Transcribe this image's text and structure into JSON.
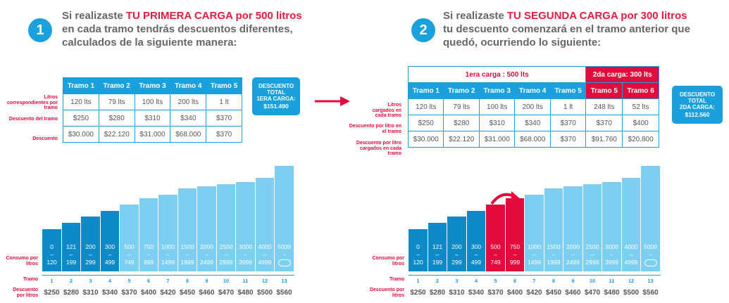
{
  "colors": {
    "blue": "#1aa0dd",
    "light_blue": "#7ccff0",
    "red": "#e30a3c",
    "dark_blue": "#0e8ac8"
  },
  "step1": {
    "number": "1",
    "line1_pre": "Si realizaste ",
    "line1_red": "TU PRIMERA CARGA",
    "line1_red2": " por 500 litros",
    "line2": "en cada tramo tendrás descuentos diferentes,",
    "line3": "calculados de la siguiente manera:",
    "table": {
      "headers": [
        "Tramo 1",
        "Tramo 2",
        "Tramo 3",
        "Tramo 4",
        "Tramo 5"
      ],
      "row_labels": [
        "Litros correspondientes por tramo",
        "Descuento del tramo",
        "Descuento"
      ],
      "rows": [
        [
          "120 lts",
          "79 lts",
          "100 lts",
          "200 lts",
          "1 lt"
        ],
        [
          "$250",
          "$280",
          "$310",
          "$340",
          "$370"
        ],
        [
          "$30.000",
          "$22.120",
          "$31.000",
          "$68.000",
          "$370"
        ]
      ]
    },
    "total_box": {
      "line1": "DESCUENTO",
      "line2": "TOTAL",
      "line3": "1ERA CARGA:",
      "amount": "$151.490"
    }
  },
  "step2": {
    "number": "2",
    "line1_pre": "Si realizaste ",
    "line1_red": "TU SEGUNDA CARGA",
    "line1_red2": " por 300 litros",
    "line2": "tu descuento comenzará en el tramo anterior que",
    "line3": "quedó, ocurriendo lo siguiente:",
    "table": {
      "group1": "1era carga : 500 lts",
      "group2": "2da carga: 300 lts",
      "headers": [
        "Tramo 1",
        "Tramo 2",
        "Tramo 3",
        "Tramo 4",
        "Tramo 5",
        "Tramo 5",
        "Tramo 6"
      ],
      "row_labels": [
        "Litros cargados en cada tramo",
        "Descuento por litro en el tramo",
        "Descuento por litro cargados en cada tramo"
      ],
      "rows": [
        [
          "120 lts",
          "79 lts",
          "100 lts",
          "200 lts",
          "1 lt",
          "248 lts",
          "52 lts"
        ],
        [
          "$250",
          "$280",
          "$310",
          "$340",
          "$370",
          "$370",
          "$400"
        ],
        [
          "$30.000",
          "$22.120",
          "$31.000",
          "$68.000",
          "$370",
          "$91.760",
          "$20.800"
        ]
      ]
    },
    "total_box": {
      "line1": "DESCUENTO",
      "line2": "TOTAL",
      "line3": "2DA CARGA:",
      "amount": "$112.560"
    }
  },
  "chart_labels": {
    "consumo": "Consumo por litros",
    "tramo": "Tramo",
    "descuento": "Descuento por litros"
  },
  "chart_data": [
    {
      "type": "bar",
      "title": "",
      "tramos": [
        "1",
        "2",
        "3",
        "4",
        "5",
        "6",
        "7",
        "8",
        "9",
        "10",
        "11",
        "12",
        "13"
      ],
      "ranges": [
        [
          "0",
          "120"
        ],
        [
          "121",
          "199"
        ],
        [
          "200",
          "299"
        ],
        [
          "300",
          "499"
        ],
        [
          "500",
          "749"
        ],
        [
          "750",
          "999"
        ],
        [
          "1000",
          "1499"
        ],
        [
          "1500",
          "1999"
        ],
        [
          "2000",
          "2499"
        ],
        [
          "2500",
          "2999"
        ],
        [
          "3000",
          "3999"
        ],
        [
          "4000",
          "4999"
        ],
        [
          "5000",
          "∞"
        ]
      ],
      "prices": [
        "$250",
        "$280",
        "$310",
        "$340",
        "$370",
        "$400",
        "$420",
        "$450",
        "$460",
        "$470",
        "$480",
        "$500",
        "$560"
      ],
      "values": [
        250,
        280,
        310,
        340,
        370,
        400,
        420,
        450,
        460,
        470,
        480,
        500,
        560
      ],
      "highlight_dark": [
        1,
        2,
        3,
        4
      ],
      "highlight_red": []
    },
    {
      "type": "bar",
      "title": "",
      "tramos": [
        "1",
        "2",
        "3",
        "4",
        "5",
        "6",
        "7",
        "8",
        "9",
        "10",
        "11",
        "12",
        "13"
      ],
      "ranges": [
        [
          "0",
          "120"
        ],
        [
          "121",
          "199"
        ],
        [
          "200",
          "299"
        ],
        [
          "300",
          "499"
        ],
        [
          "500",
          "749"
        ],
        [
          "750",
          "999"
        ],
        [
          "1000",
          "1499"
        ],
        [
          "1500",
          "1999"
        ],
        [
          "2000",
          "2499"
        ],
        [
          "2500",
          "2999"
        ],
        [
          "3000",
          "3999"
        ],
        [
          "4000",
          "4999"
        ],
        [
          "5000",
          "∞"
        ]
      ],
      "prices": [
        "$250",
        "$280",
        "$310",
        "$340",
        "$370",
        "$400",
        "$420",
        "$450",
        "$460",
        "$470",
        "$480",
        "$500",
        "$560"
      ],
      "values": [
        250,
        280,
        310,
        340,
        370,
        400,
        420,
        450,
        460,
        470,
        480,
        500,
        560
      ],
      "highlight_dark": [
        1,
        2,
        3,
        4
      ],
      "highlight_red": [
        5,
        6
      ]
    }
  ]
}
